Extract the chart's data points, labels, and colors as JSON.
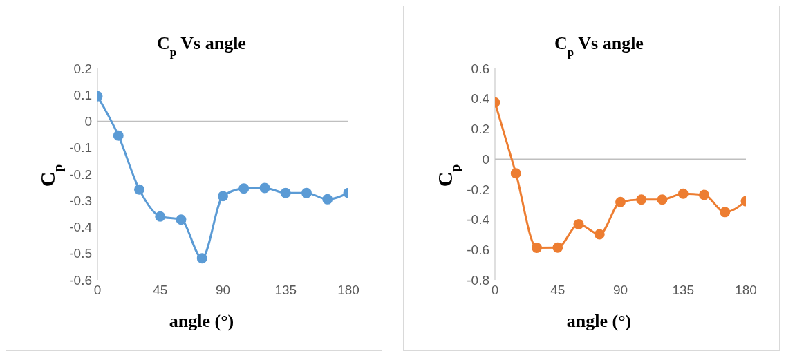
{
  "chart_data": [
    {
      "type": "line",
      "title": "C$_{p}$ Vs angle",
      "xlabel": "angle (°)",
      "ylabel": "C$_{p}$",
      "x": [
        0,
        15,
        30,
        45,
        60,
        75,
        90,
        105,
        120,
        135,
        150,
        165,
        180
      ],
      "series": [
        {
          "color": "#5b9bd5",
          "values": [
            0.095,
            -0.054,
            -0.258,
            -0.36,
            -0.372,
            -0.518,
            -0.283,
            -0.254,
            -0.252,
            -0.271,
            -0.271,
            -0.295,
            -0.271
          ]
        }
      ],
      "xlim": [
        0,
        180
      ],
      "xticks": [
        0,
        45,
        90,
        135,
        180
      ],
      "ylim": [
        -0.6,
        0.2
      ],
      "yticks": [
        -0.6,
        -0.5,
        -0.4,
        -0.3,
        -0.2,
        -0.1,
        0,
        0.1,
        0.2
      ],
      "ref_lines": [
        {
          "axis": "y",
          "value": 0,
          "color": "#bfbfbf"
        }
      ],
      "grid": false,
      "legend": false,
      "marker": "circle",
      "line_style": "solid"
    },
    {
      "type": "line",
      "title": "C$_{p}$ Vs angle",
      "xlabel": "angle (°)",
      "ylabel": "C$_{p}$",
      "x": [
        0,
        15,
        30,
        45,
        60,
        75,
        90,
        105,
        120,
        135,
        150,
        165,
        180
      ],
      "series": [
        {
          "color": "#ed7d31",
          "values": [
            0.375,
            -0.094,
            -0.587,
            -0.586,
            -0.432,
            -0.498,
            -0.284,
            -0.268,
            -0.268,
            -0.229,
            -0.237,
            -0.351,
            -0.279
          ]
        }
      ],
      "xlim": [
        0,
        180
      ],
      "xticks": [
        0,
        45,
        90,
        135,
        180
      ],
      "ylim": [
        -0.8,
        0.6
      ],
      "yticks": [
        -0.8,
        -0.6,
        -0.4,
        -0.2,
        0,
        0.2,
        0.4,
        0.6
      ],
      "ref_lines": [
        {
          "axis": "y",
          "value": 0,
          "color": "#bfbfbf"
        }
      ],
      "grid": false,
      "legend": false,
      "marker": "circle",
      "line_style": "solid"
    }
  ]
}
